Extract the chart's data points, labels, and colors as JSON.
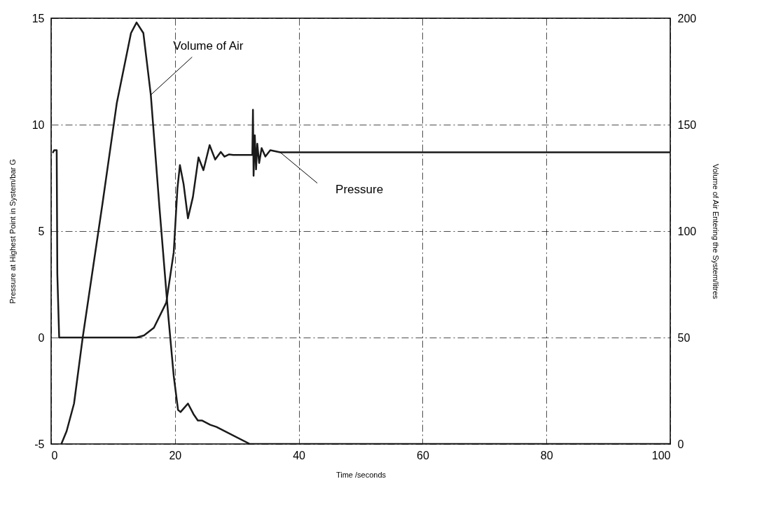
{
  "chart_data": {
    "type": "line",
    "xlabel": "Time /seconds",
    "ylabel": "Pressure at Highest Point in System/bar G",
    "y2label": "Volume of Air Entering the System/litres",
    "xlim": [
      0,
      100
    ],
    "xticks": [
      0,
      20,
      40,
      60,
      80,
      100
    ],
    "ylim": [
      -5,
      15
    ],
    "yticks": [
      -5,
      0,
      5,
      10,
      15
    ],
    "y2lim": [
      0,
      200
    ],
    "y2ticks": [
      0,
      50,
      100,
      150,
      200
    ],
    "grid": true,
    "line_style": "solid",
    "series": [
      {
        "name": "Pressure",
        "color": "#1a1a1a",
        "x": [
          0.3,
          0.5,
          0.9,
          1.0,
          1.3,
          13.8,
          15.0,
          16.6,
          18.6,
          19.8,
          20.4,
          20.8,
          21.4,
          22.1,
          22.9,
          23.8,
          24.6,
          25.6,
          26.5,
          27.4,
          28.0,
          28.7,
          29.4,
          32.5,
          32.6,
          32.7,
          32.9,
          33.1,
          33.3,
          33.6,
          34.0,
          34.6,
          35.4,
          37.0,
          100
        ],
        "values": [
          8.7,
          8.8,
          8.8,
          3.0,
          0,
          0,
          0.1,
          0.46,
          1.64,
          4.0,
          7.0,
          8.1,
          7.2,
          5.6,
          6.6,
          8.46,
          7.86,
          9.04,
          8.36,
          8.72,
          8.5,
          8.6,
          8.58,
          8.58,
          10.7,
          7.6,
          9.5,
          7.9,
          9.1,
          8.2,
          8.9,
          8.5,
          8.8,
          8.7,
          8.7
        ]
      },
      {
        "name": "Volume of Air",
        "color": "#1a1a1a",
        "axis": "y2",
        "x": [
          1.65,
          2.5,
          3.7,
          5.1,
          8.3,
          10.6,
          12.9,
          13.8,
          14.9,
          16.1,
          17.5,
          18.9,
          19.8,
          20.5,
          20.9,
          21.5,
          22.1,
          23.0,
          23.7,
          24.4,
          25.7,
          26.7,
          32.1,
          100
        ],
        "values": [
          0,
          6,
          19,
          50,
          113,
          160,
          193,
          198,
          193,
          164,
          111,
          61,
          32,
          16,
          15,
          17,
          19,
          14,
          11,
          11,
          9,
          8,
          0,
          0
        ]
      }
    ]
  }
}
